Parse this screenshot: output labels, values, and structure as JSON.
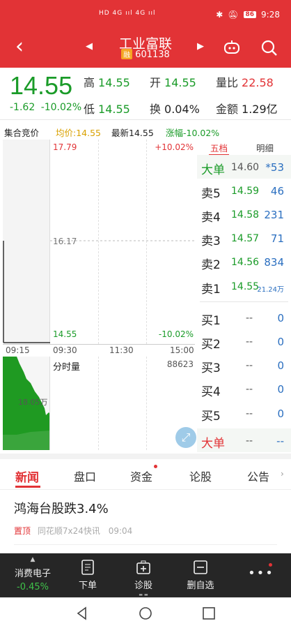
{
  "status_bar": {
    "signal_text": "HD 4G ııl 4G ııl",
    "battery": "86",
    "time": "9:28"
  },
  "header": {
    "title": "工业富联",
    "tag": "融",
    "code": "601138"
  },
  "quote": {
    "price": "14.55",
    "change": "-1.62",
    "change_pct": "-10.02%",
    "high_label": "高",
    "high": "14.55",
    "open_label": "开",
    "open": "14.55",
    "vol_ratio_label": "量比",
    "vol_ratio": "22.58",
    "low_label": "低",
    "low": "14.55",
    "turnover_label": "换",
    "turnover": "0.04%",
    "amount_label": "金额",
    "amount": "1.29亿"
  },
  "indicators": {
    "auction": "集合竞价",
    "avg": "均价:14.55",
    "latest": "最新14.55",
    "change": "涨幅-10.02%"
  },
  "chart": {
    "top_price": "17.79",
    "top_pct": "+10.02%",
    "mid_price": "16.17",
    "bottom_price": "14.55",
    "bottom_pct": "-10.02%",
    "times": [
      "09:15",
      "09:30",
      "11:30",
      "15:00"
    ],
    "volume_label": "分时量",
    "volume_value": "88623",
    "auction_volume": "18.05万"
  },
  "order_book": {
    "tab_active": "五档",
    "tab_other": "明细",
    "big_top": {
      "name": "大单",
      "price": "14.60",
      "vol": "*53"
    },
    "sells": [
      {
        "name": "卖5",
        "price": "14.59",
        "vol": "46"
      },
      {
        "name": "卖4",
        "price": "14.58",
        "vol": "231"
      },
      {
        "name": "卖3",
        "price": "14.57",
        "vol": "71"
      },
      {
        "name": "卖2",
        "price": "14.56",
        "vol": "834"
      },
      {
        "name": "卖1",
        "price": "14.55",
        "vol": "21.24万"
      }
    ],
    "buys": [
      {
        "name": "买1",
        "price": "--",
        "vol": "0"
      },
      {
        "name": "买2",
        "price": "--",
        "vol": "0"
      },
      {
        "name": "买3",
        "price": "--",
        "vol": "0"
      },
      {
        "name": "买4",
        "price": "--",
        "vol": "0"
      },
      {
        "name": "买5",
        "price": "--",
        "vol": "0"
      }
    ],
    "big_bottom": {
      "name": "大单",
      "price": "--",
      "vol": "--"
    }
  },
  "tabs": [
    "新闻",
    "盘口",
    "资金",
    "论股",
    "公告"
  ],
  "news": {
    "title": "鸿海台股跌3.4%",
    "pin": "置顶",
    "source": "同花顺7x24快讯",
    "time": "09:04"
  },
  "bottom_bar": {
    "sector_name": "消费电子",
    "sector_change": "-0.45%",
    "order": "下单",
    "diagnose": "诊股",
    "remove": "删自选"
  },
  "colors": {
    "brand_red": "#e23336",
    "down_green": "#1a9b28",
    "blue": "#2b6fc0"
  }
}
